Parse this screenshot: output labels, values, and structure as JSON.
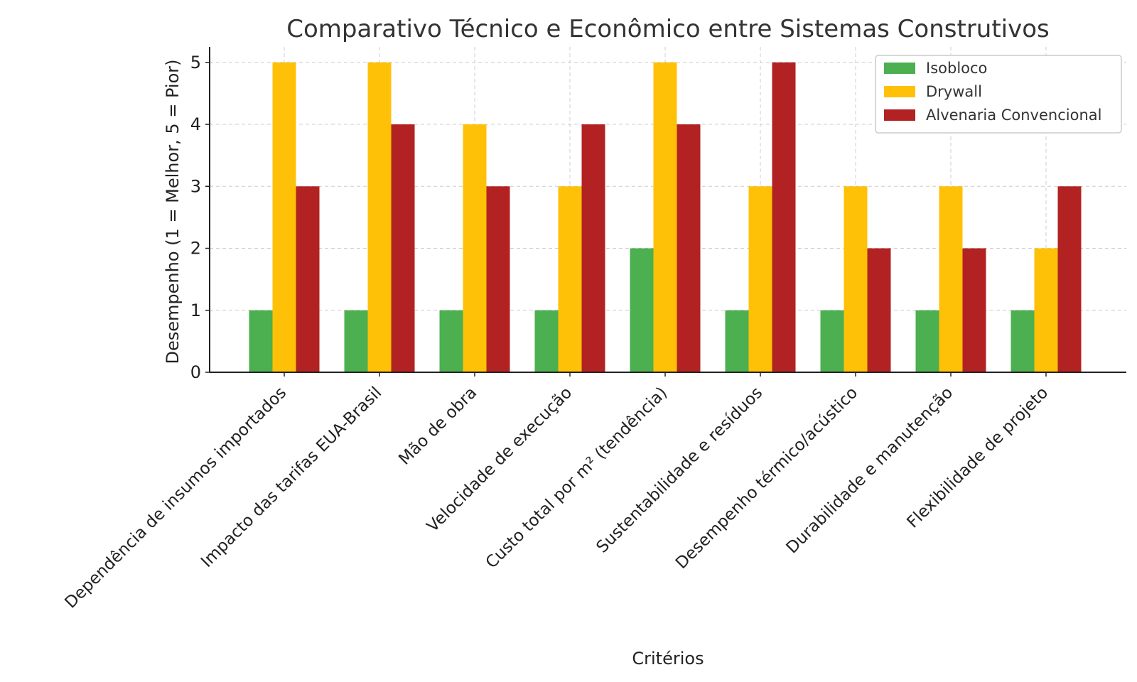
{
  "chart_data": {
    "type": "bar",
    "title": "Comparativo Técnico e Econômico entre Sistemas Construtivos",
    "xlabel": "Critérios",
    "ylabel": "Desempenho (1 = Melhor, 5 = Pior)",
    "ylim": [
      0,
      5.25
    ],
    "yticks": [
      "0",
      "1",
      "2",
      "3",
      "4",
      "5"
    ],
    "grid": true,
    "legend_position": "top-right",
    "categories": [
      "Dependência de insumos importados",
      "Impacto das tarifas EUA-Brasil",
      "Mão de obra",
      "Velocidade de execução",
      "Custo total por m² (tendência)",
      "Sustentabilidade e resíduos",
      "Desempenho térmico/acústico",
      "Durabilidade e manutenção",
      "Flexibilidade de projeto"
    ],
    "series": [
      {
        "name": "Isobloco",
        "color": "#4caf50",
        "values": [
          1,
          1,
          1,
          1,
          2,
          1,
          1,
          1,
          1
        ]
      },
      {
        "name": "Drywall",
        "color": "#ffc107",
        "values": [
          5,
          5,
          4,
          3,
          5,
          3,
          3,
          3,
          2
        ]
      },
      {
        "name": "Alvenaria Convencional",
        "color": "#b22222",
        "values": [
          3,
          4,
          3,
          4,
          4,
          5,
          2,
          2,
          3
        ]
      }
    ]
  }
}
